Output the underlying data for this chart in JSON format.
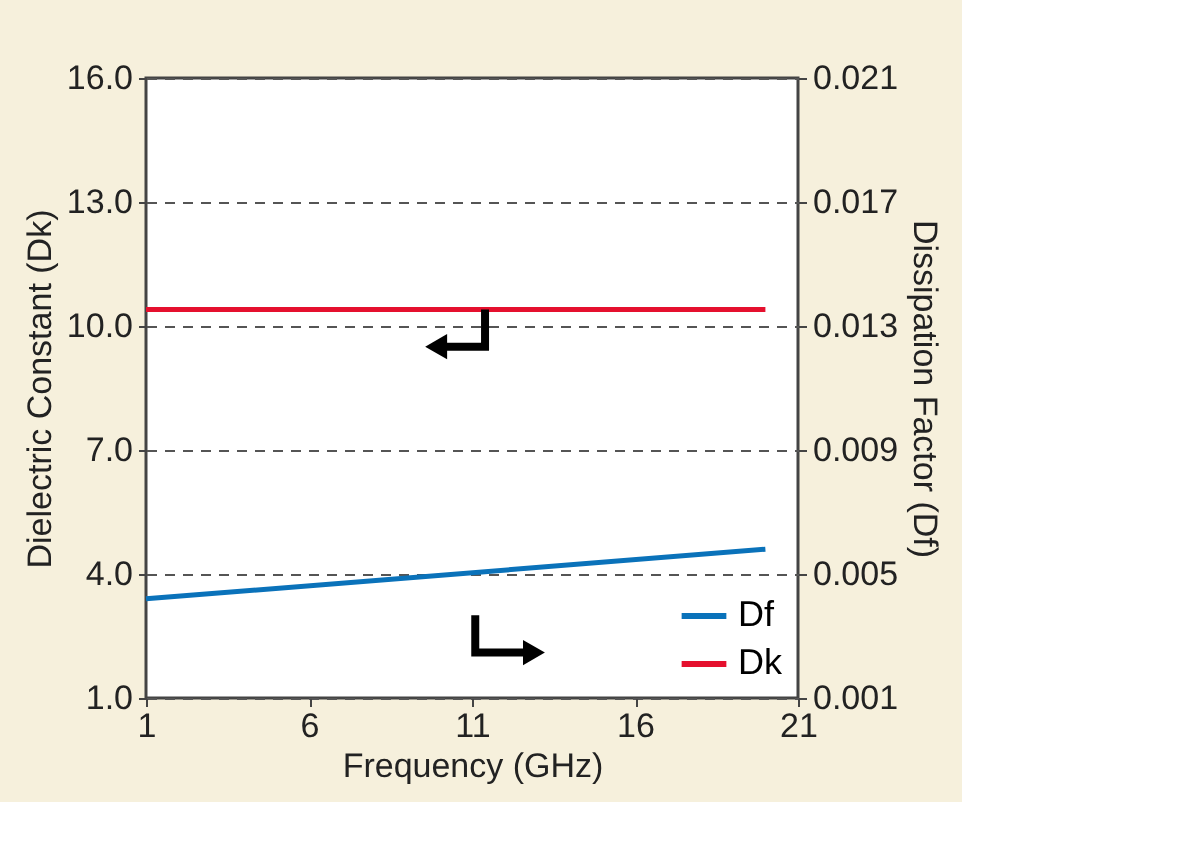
{
  "chart_data": {
    "type": "line",
    "xlabel": "Frequency (GHz)",
    "ylabel": "Dielectric Constant (Dk)",
    "y2label": "Dissipation Factor (Df)",
    "xlim": [
      1,
      21
    ],
    "xticks": [
      1,
      6,
      11,
      16,
      21
    ],
    "ylim": [
      1.0,
      16.0
    ],
    "yticks": [
      {
        "value": 1,
        "label": "1.0"
      },
      {
        "value": 4,
        "label": "4.0"
      },
      {
        "value": 7,
        "label": "7.0"
      },
      {
        "value": 10,
        "label": "10.0"
      },
      {
        "value": 13,
        "label": "13.0"
      },
      {
        "value": 16,
        "label": "16.0"
      }
    ],
    "y2lim": [
      0.001,
      0.021
    ],
    "y2ticks": [
      0.001,
      0.005,
      0.009,
      0.013,
      0.017,
      0.021
    ],
    "x": [
      1,
      20
    ],
    "series": [
      {
        "name": "Df",
        "color": "#0a72ba",
        "axis": "y2",
        "values": [
          0.0042,
          0.0058
        ]
      },
      {
        "name": "Dk",
        "color": "#e5102e",
        "values": [
          10.4,
          10.4
        ]
      }
    ],
    "grid": "y",
    "legend": "bottom right",
    "marker": "none",
    "line_style": "solid"
  }
}
